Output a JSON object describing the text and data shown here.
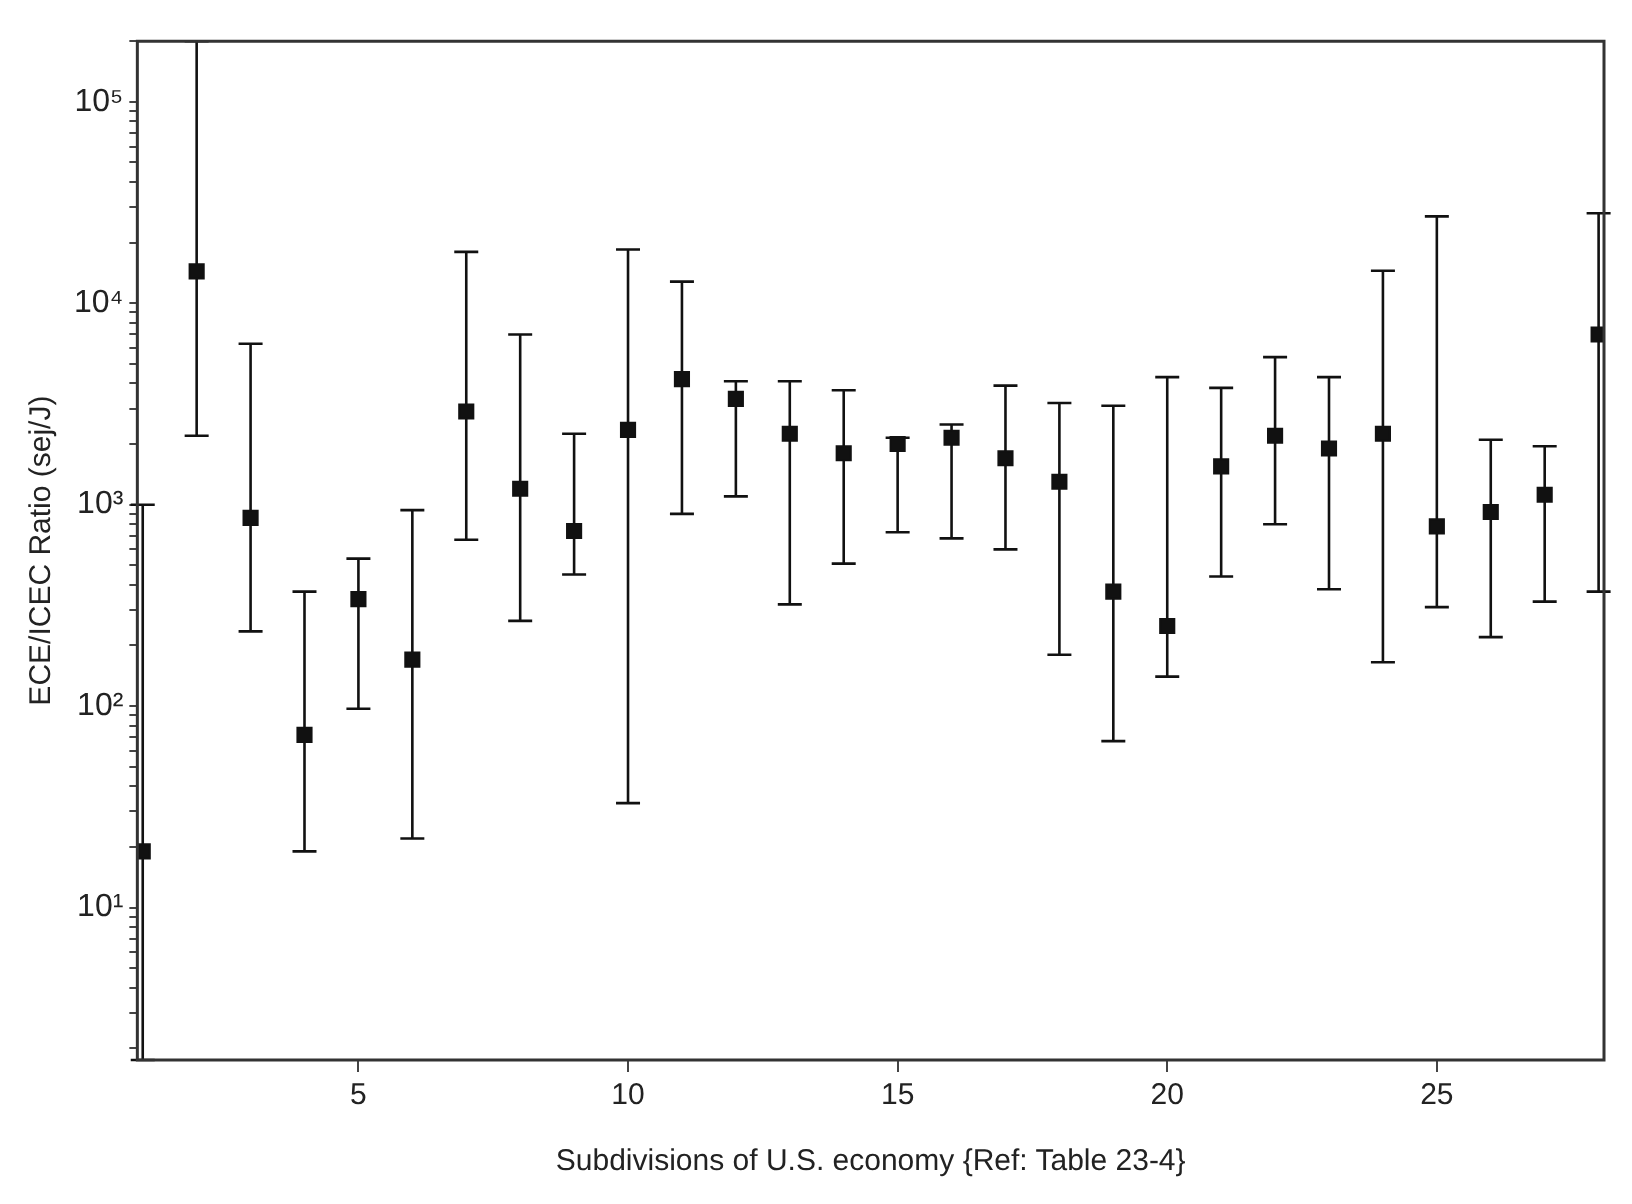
{
  "chart_data": {
    "type": "scatter",
    "xlabel": "Subdivisions of U.S. economy {Ref: Table 23-4}",
    "ylabel": "ECE/ICEC Ratio (sej/J)",
    "log": "y",
    "grid": false,
    "marker": "square",
    "legend": false,
    "xlim": [
      0.9,
      28.1
    ],
    "xticks": [
      5,
      10,
      15,
      20,
      25
    ],
    "ylim": [
      1.75,
      200000
    ],
    "yticks": [
      {
        "value": 2,
        "label": null
      },
      {
        "value": 3,
        "label": null
      },
      {
        "value": 4,
        "label": null
      },
      {
        "value": 5,
        "label": null
      },
      {
        "value": 6,
        "label": null
      },
      {
        "value": 7,
        "label": null
      },
      {
        "value": 8,
        "label": null
      },
      {
        "value": 9,
        "label": null
      },
      {
        "value": 10,
        "label": "10¹"
      },
      {
        "value": 20,
        "label": null
      },
      {
        "value": 30,
        "label": null
      },
      {
        "value": 40,
        "label": null
      },
      {
        "value": 50,
        "label": null
      },
      {
        "value": 60,
        "label": null
      },
      {
        "value": 70,
        "label": null
      },
      {
        "value": 80,
        "label": null
      },
      {
        "value": 90,
        "label": null
      },
      {
        "value": 100,
        "label": "10²"
      },
      {
        "value": 200,
        "label": null
      },
      {
        "value": 300,
        "label": null
      },
      {
        "value": 400,
        "label": null
      },
      {
        "value": 500,
        "label": null
      },
      {
        "value": 600,
        "label": null
      },
      {
        "value": 700,
        "label": null
      },
      {
        "value": 800,
        "label": null
      },
      {
        "value": 900,
        "label": null
      },
      {
        "value": 1000,
        "label": "10³"
      },
      {
        "value": 2000,
        "label": null
      },
      {
        "value": 3000,
        "label": null
      },
      {
        "value": 4000,
        "label": null
      },
      {
        "value": 5000,
        "label": null
      },
      {
        "value": 6000,
        "label": null
      },
      {
        "value": 7000,
        "label": null
      },
      {
        "value": 8000,
        "label": null
      },
      {
        "value": 9000,
        "label": null
      },
      {
        "value": 10000,
        "label": "10⁴"
      },
      {
        "value": 20000,
        "label": null
      },
      {
        "value": 30000,
        "label": null
      },
      {
        "value": 40000,
        "label": null
      },
      {
        "value": 50000,
        "label": null
      },
      {
        "value": 60000,
        "label": null
      },
      {
        "value": 70000,
        "label": null
      },
      {
        "value": 80000,
        "label": null
      },
      {
        "value": 90000,
        "label": null
      },
      {
        "value": 100000,
        "label": "10⁵"
      },
      {
        "value": 200000,
        "label": null
      }
    ],
    "series": [
      {
        "color": "#111111",
        "x": [
          1,
          2,
          3,
          4,
          5,
          6,
          7,
          8,
          9,
          10,
          11,
          12,
          13,
          14,
          15,
          16,
          17,
          18,
          19,
          20,
          21,
          22,
          23,
          24,
          25,
          26,
          27,
          28
        ],
        "values": [
          19,
          14400,
          860,
          72,
          340,
          170,
          2900,
          1200,
          740,
          2350,
          4200,
          3350,
          2250,
          1800,
          2000,
          2150,
          1700,
          1300,
          370,
          250,
          1550,
          2200,
          1900,
          2250,
          780,
          920,
          1120,
          7000
        ],
        "errors": [
          [
            1.75,
            1000
          ],
          [
            2200,
            200000
          ],
          [
            235,
            6300
          ],
          [
            19,
            370
          ],
          [
            97,
            540
          ],
          [
            22,
            940
          ],
          [
            670,
            18000
          ],
          [
            265,
            7000
          ],
          [
            450,
            2250
          ],
          [
            33,
            18500
          ],
          [
            900,
            12800
          ],
          [
            1100,
            4100
          ],
          [
            320,
            4100
          ],
          [
            510,
            3700
          ],
          [
            730,
            2150
          ],
          [
            680,
            2500
          ],
          [
            600,
            3900
          ],
          [
            180,
            3200
          ],
          [
            67,
            3100
          ],
          [
            140,
            4300
          ],
          [
            440,
            3800
          ],
          [
            800,
            5400
          ],
          [
            380,
            4300
          ],
          [
            165,
            14500
          ],
          [
            310,
            27000
          ],
          [
            220,
            2100
          ],
          [
            330,
            1950
          ],
          [
            370,
            28000
          ]
        ]
      }
    ]
  }
}
